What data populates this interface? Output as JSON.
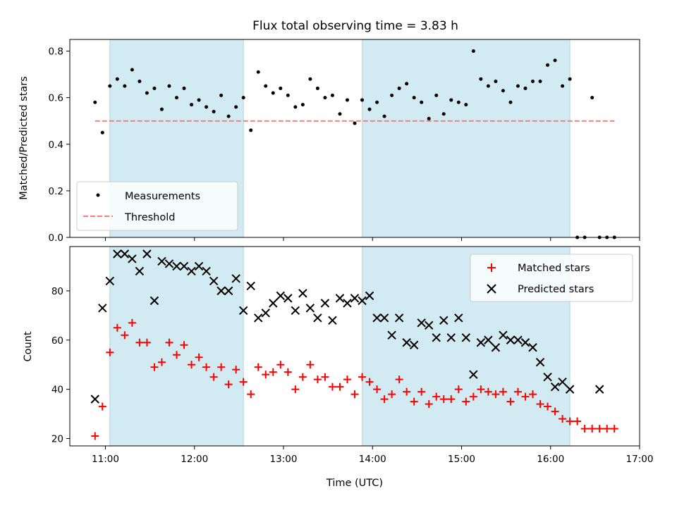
{
  "title": "Flux total observing time = 3.83 h",
  "colors": {
    "shade": "#add8e6",
    "measure": "#000000",
    "threshold": "#f08080",
    "matched": "#ff0000",
    "predicted": "#000000"
  },
  "chart_data": [
    {
      "type": "scatter",
      "ylabel": "Matched/Predicted stars",
      "xlim": [
        "10:36",
        "17:00"
      ],
      "ylim": [
        0,
        0.85
      ],
      "yticks": [
        0.0,
        0.2,
        0.4,
        0.6,
        0.8
      ],
      "shaded_intervals": [
        [
          "11:03",
          "12:33"
        ],
        [
          "13:53",
          "16:13"
        ]
      ],
      "legend": {
        "position": "lower-left",
        "entries": [
          "Measurements",
          "Threshold"
        ]
      },
      "threshold": {
        "name": "Threshold",
        "value": 0.5,
        "x_range": [
          "10:53",
          "16:43"
        ]
      },
      "series": [
        {
          "name": "Measurements",
          "marker": "dot",
          "x": [
            "10:53",
            "10:58",
            "11:03",
            "11:08",
            "11:13",
            "11:18",
            "11:23",
            "11:28",
            "11:33",
            "11:38",
            "11:43",
            "11:48",
            "11:53",
            "11:58",
            "12:03",
            "12:08",
            "12:13",
            "12:18",
            "12:23",
            "12:28",
            "12:33",
            "12:38",
            "12:43",
            "12:48",
            "12:53",
            "12:58",
            "13:03",
            "13:08",
            "13:13",
            "13:18",
            "13:23",
            "13:28",
            "13:33",
            "13:38",
            "13:43",
            "13:48",
            "13:53",
            "13:58",
            "14:03",
            "14:08",
            "14:13",
            "14:18",
            "14:23",
            "14:28",
            "14:33",
            "14:38",
            "14:43",
            "14:48",
            "14:53",
            "14:58",
            "15:03",
            "15:08",
            "15:13",
            "15:18",
            "15:23",
            "15:28",
            "15:33",
            "15:38",
            "15:43",
            "15:48",
            "15:53",
            "15:58",
            "16:03",
            "16:08",
            "16:13",
            "16:18",
            "16:23",
            "16:28",
            "16:33",
            "16:38",
            "16:43"
          ],
          "y": [
            0.58,
            0.45,
            0.65,
            0.68,
            0.65,
            0.72,
            0.67,
            0.62,
            0.64,
            0.55,
            0.65,
            0.6,
            0.64,
            0.57,
            0.59,
            0.56,
            0.54,
            0.61,
            0.52,
            0.56,
            0.6,
            0.46,
            0.71,
            0.65,
            0.62,
            0.64,
            0.61,
            0.56,
            0.57,
            0.68,
            0.64,
            0.6,
            0.61,
            0.53,
            0.59,
            0.49,
            0.59,
            0.55,
            0.58,
            0.52,
            0.61,
            0.64,
            0.66,
            0.6,
            0.58,
            0.51,
            0.61,
            0.53,
            0.59,
            0.58,
            0.57,
            0.8,
            0.68,
            0.65,
            0.67,
            0.63,
            0.58,
            0.65,
            0.64,
            0.67,
            0.67,
            0.74,
            0.76,
            0.65,
            0.68,
            0.0,
            0.0,
            0.6,
            0.0,
            0.0,
            0.0
          ]
        }
      ]
    },
    {
      "type": "scatter",
      "xlabel": "Time (UTC)",
      "ylabel": "Count",
      "xlim": [
        "10:36",
        "17:00"
      ],
      "ylim": [
        17,
        98
      ],
      "yticks": [
        20,
        40,
        60,
        80
      ],
      "xticks": [
        "11:00",
        "12:00",
        "13:00",
        "14:00",
        "15:00",
        "16:00",
        "17:00"
      ],
      "shaded_intervals": [
        [
          "11:03",
          "12:33"
        ],
        [
          "13:53",
          "16:13"
        ]
      ],
      "legend": {
        "position": "top-right",
        "entries": [
          "Matched stars",
          "Predicted stars"
        ]
      },
      "series": [
        {
          "name": "Matched stars",
          "marker": "plus",
          "x": [
            "10:53",
            "10:58",
            "11:03",
            "11:08",
            "11:13",
            "11:18",
            "11:23",
            "11:28",
            "11:33",
            "11:38",
            "11:43",
            "11:48",
            "11:53",
            "11:58",
            "12:03",
            "12:08",
            "12:13",
            "12:18",
            "12:23",
            "12:28",
            "12:33",
            "12:38",
            "12:43",
            "12:48",
            "12:53",
            "12:58",
            "13:03",
            "13:08",
            "13:13",
            "13:18",
            "13:23",
            "13:28",
            "13:33",
            "13:38",
            "13:43",
            "13:48",
            "13:53",
            "13:58",
            "14:03",
            "14:08",
            "14:13",
            "14:18",
            "14:23",
            "14:28",
            "14:33",
            "14:38",
            "14:43",
            "14:48",
            "14:53",
            "14:58",
            "15:03",
            "15:08",
            "15:13",
            "15:18",
            "15:23",
            "15:28",
            "15:33",
            "15:38",
            "15:43",
            "15:48",
            "15:53",
            "15:58",
            "16:03",
            "16:08",
            "16:13",
            "16:18",
            "16:23",
            "16:28",
            "16:33",
            "16:38",
            "16:43"
          ],
          "y": [
            21,
            33,
            55,
            65,
            62,
            67,
            59,
            59,
            49,
            51,
            59,
            54,
            58,
            50,
            53,
            49,
            45,
            49,
            42,
            48,
            43,
            38,
            49,
            46,
            47,
            50,
            47,
            40,
            45,
            50,
            44,
            45,
            41,
            41,
            44,
            38,
            45,
            43,
            40,
            36,
            38,
            44,
            39,
            35,
            39,
            34,
            37,
            36,
            36,
            40,
            35,
            37,
            40,
            39,
            38,
            39,
            35,
            39,
            37,
            38,
            34,
            33,
            31,
            28,
            27,
            27,
            24,
            24,
            24,
            24,
            24
          ]
        },
        {
          "name": "Predicted stars",
          "marker": "x",
          "x": [
            "10:53",
            "10:58",
            "11:03",
            "11:08",
            "11:13",
            "11:18",
            "11:23",
            "11:28",
            "11:33",
            "11:38",
            "11:43",
            "11:48",
            "11:53",
            "11:58",
            "12:03",
            "12:08",
            "12:13",
            "12:18",
            "12:23",
            "12:28",
            "12:33",
            "12:38",
            "12:43",
            "12:48",
            "12:53",
            "12:58",
            "13:03",
            "13:08",
            "13:13",
            "13:18",
            "13:23",
            "13:28",
            "13:33",
            "13:38",
            "13:43",
            "13:48",
            "13:53",
            "13:58",
            "14:03",
            "14:08",
            "14:13",
            "14:18",
            "14:23",
            "14:28",
            "14:33",
            "14:38",
            "14:43",
            "14:48",
            "14:53",
            "14:58",
            "15:03",
            "15:08",
            "15:13",
            "15:18",
            "15:23",
            "15:28",
            "15:33",
            "15:38",
            "15:43",
            "15:48",
            "15:53",
            "15:58",
            "16:03",
            "16:08",
            "16:13",
            "16:33"
          ],
          "y": [
            36,
            73,
            84,
            95,
            95,
            93,
            88,
            95,
            76,
            92,
            91,
            90,
            90,
            88,
            90,
            88,
            84,
            80,
            80,
            85,
            72,
            82,
            69,
            71,
            75,
            78,
            77,
            72,
            79,
            73,
            69,
            75,
            68,
            77,
            75,
            77,
            76,
            78,
            69,
            69,
            62,
            69,
            59,
            58,
            67,
            66,
            61,
            68,
            61,
            69,
            61,
            46,
            59,
            60,
            57,
            62,
            60,
            60,
            59,
            57,
            51,
            45,
            41,
            43,
            40,
            40
          ]
        }
      ]
    }
  ]
}
